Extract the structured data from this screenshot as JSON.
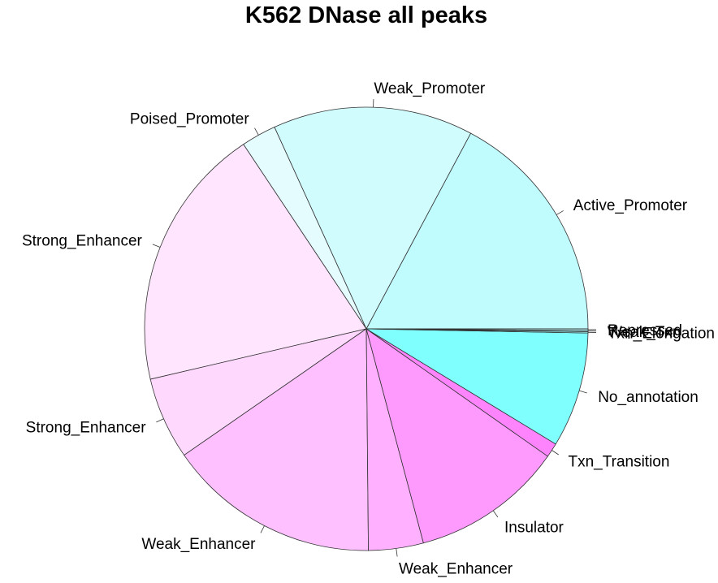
{
  "chart_data": {
    "type": "pie",
    "title": "K562 DNase all peaks",
    "slices": [
      {
        "label": "Active_Promoter",
        "value": 17.2,
        "color": "#c0fcfe"
      },
      {
        "label": "Weak_Promoter",
        "value": 14.6,
        "color": "#d1fcfe"
      },
      {
        "label": "Poised_Promoter",
        "value": 2.55,
        "color": "#e4fcfe"
      },
      {
        "label": "Strong_Enhancer",
        "value": 19.3,
        "color": "#ffe6fe"
      },
      {
        "label": "Strong_Enhancer",
        "value": 6.0,
        "color": "#ffd8fe"
      },
      {
        "label": "Weak_Enhancer",
        "value": 15.5,
        "color": "#fec0fe"
      },
      {
        "label": "Weak_Enhancer",
        "value": 4.0,
        "color": "#ffb0fe"
      },
      {
        "label": "Insulator",
        "value": 11.1,
        "color": "#fe9afe"
      },
      {
        "label": "Txn_Transition",
        "value": 1.05,
        "color": "#fe84fe"
      },
      {
        "label": "No_annotation",
        "value": 8.4,
        "color": "#80ffff"
      },
      {
        "label": "Txn_Elongation",
        "value": 0.1,
        "color": "#a0feff"
      },
      {
        "label": "Weak_Txn",
        "value": 0.1,
        "color": "#b0feff"
      },
      {
        "label": "Repressed",
        "value": 0.1,
        "color": "#c0feff"
      }
    ]
  }
}
